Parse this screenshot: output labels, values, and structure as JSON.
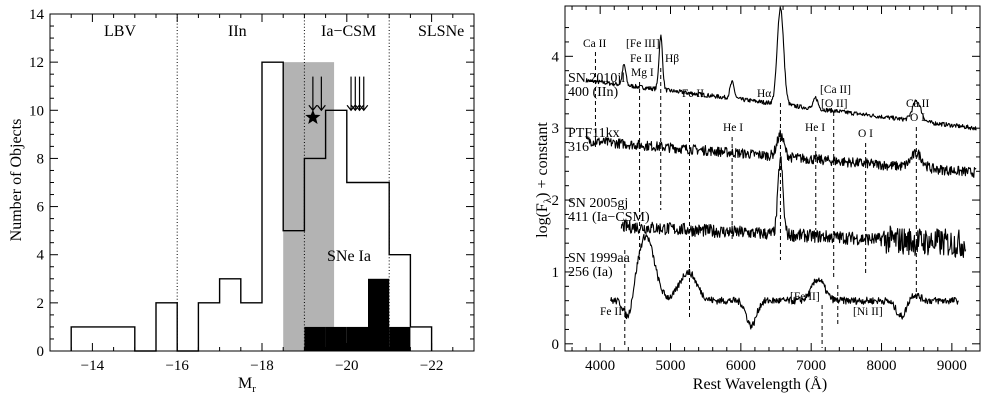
{
  "chart_data": [
    {
      "type": "histogram",
      "xlabel": "M",
      "xlabel_sub": "r",
      "ylabel": "Number of Objects",
      "xlim": [
        -13,
        -23
      ],
      "ylim": [
        0,
        14
      ],
      "x_ticks": [
        -14,
        -16,
        -18,
        -20,
        -22
      ],
      "x_tick_labels": [
        "−14",
        "−16",
        "−18",
        "−20",
        "−22"
      ],
      "y_ticks": [
        0,
        2,
        4,
        6,
        8,
        10,
        12,
        14
      ],
      "boundaries": [
        -16,
        -19,
        -21
      ],
      "regions": [
        "LBV",
        "IIn",
        "Ia−CSM",
        "SLSNe"
      ],
      "shaded_label": "SNe Ia",
      "shaded_range": [
        -18.5,
        -19.7
      ],
      "shaded_height": 12,
      "bin_edges": [
        -13.5,
        -14,
        -14.5,
        -15,
        -15.5,
        -16,
        -16.5,
        -17,
        -17.5,
        -18,
        -18.5,
        -19,
        -19.5,
        -20,
        -20.5,
        -21,
        -21.5,
        -22
      ],
      "all_counts": [
        1,
        1,
        1,
        0,
        2,
        0,
        2,
        3,
        2,
        12,
        5,
        8,
        10,
        7,
        7,
        4,
        1
      ],
      "ia_csm_counts": [
        0,
        0,
        0,
        0,
        0,
        0,
        0,
        0,
        0,
        0,
        0,
        1,
        1,
        1,
        3,
        1,
        0
      ],
      "star_x": -19.2,
      "star_y": 9.7,
      "arrow_groups": [
        [
          -19.2,
          -19.4
        ],
        [
          -20.1,
          -20.2,
          -20.3,
          -20.4
        ]
      ]
    },
    {
      "type": "line",
      "xlabel": "Rest Wavelength (Å)",
      "ylabel": "log(F",
      "ylabel_sub": "λ",
      "ylabel_tail": ") + constant",
      "xlim": [
        3500,
        9400
      ],
      "ylim": [
        -0.1,
        4.7
      ],
      "x_ticks": [
        4000,
        5000,
        6000,
        7000,
        8000,
        9000
      ],
      "y_ticks": [
        0,
        1,
        2,
        3,
        4
      ],
      "series": [
        {
          "name": "SN 2010jl",
          "name2": "400 (IIn)",
          "x_start": 3800,
          "x_end": 9350,
          "base": 3.4,
          "slope": -0.12,
          "noise": 0.03,
          "lines": [
            [
              4340,
              0.28,
              25
            ],
            [
              4861,
              0.75,
              25
            ],
            [
              5876,
              0.22,
              30
            ],
            [
              6563,
              1.35,
              45
            ],
            [
              7065,
              0.15,
              30
            ],
            [
              8500,
              0.28,
              60
            ]
          ]
        },
        {
          "name": "PTF11kx",
          "name2": "316",
          "x_start": 3800,
          "x_end": 9350,
          "base": 2.65,
          "slope": -0.08,
          "noise": 0.07,
          "lines": [
            [
              6563,
              0.3,
              50
            ],
            [
              8500,
              0.2,
              80
            ]
          ]
        },
        {
          "name": "SN 2005gj",
          "name2": "411 (Ia−CSM)",
          "x_start": 4300,
          "x_end": 9200,
          "base": 1.55,
          "slope": -0.05,
          "noise": 0.09,
          "lines": [
            [
              6563,
              1.05,
              35
            ]
          ]
        },
        {
          "name": "SN 1999aa",
          "name2": "256 (Ia)",
          "x_start": 4150,
          "x_end": 9100,
          "base": 0.6,
          "slope": 0,
          "noise": 0.05,
          "lines": [
            [
              4650,
              0.9,
              120
            ],
            [
              5250,
              0.4,
              120
            ],
            [
              7100,
              0.3,
              90
            ],
            [
              8400,
              0.15,
              100
            ],
            [
              4400,
              -0.3,
              60
            ],
            [
              6150,
              -0.35,
              70
            ],
            [
              8300,
              -0.3,
              80
            ]
          ]
        }
      ],
      "line_ids": [
        {
          "label": "Ca II",
          "x": 3933
        },
        {
          "label": "Fe II",
          "x": 4550
        },
        {
          "label": "Mg I",
          "x": 4570
        },
        {
          "label": "[Fe III]",
          "x": 4658
        },
        {
          "label": "Hβ",
          "x": 4861
        },
        {
          "label": "Fe II",
          "x": 5270
        },
        {
          "label": "He I",
          "x": 5876
        },
        {
          "label": "Hα",
          "x": 6563
        },
        {
          "label": "He I",
          "x": 7065
        },
        {
          "label": "[Ca II]",
          "x": 7300
        },
        {
          "label": "[O II]",
          "x": 7320
        },
        {
          "label": "O I",
          "x": 7774
        },
        {
          "label": "Ca II",
          "x": 8520
        },
        {
          "label": "O I",
          "x": 8446
        },
        {
          "label": "Fe II",
          "x": 4350
        },
        {
          "label": "[Fe II]",
          "x": 7155
        },
        {
          "label": "[Ni II]",
          "x": 7378
        }
      ]
    }
  ],
  "text": {
    "left_regions": [
      "LBV",
      "IIn",
      "Ia−CSM",
      "SLSNe"
    ],
    "shaded_label": "SNe Ia",
    "left_ylabel": "Number of Objects",
    "left_xlabel": "M",
    "left_xsub": "r",
    "right_xlabel": "Rest Wavelength (Å)",
    "r_ylabel_a": "log(F",
    "r_ylabel_sub": "λ",
    "r_ylabel_b": ") + constant",
    "s1a": "SN 2010jl",
    "s1b": "400 (IIn)",
    "s2a": "PTF11kx",
    "s2b": "316",
    "s3a": "SN 2005gj",
    "s3b": "411 (Ia−CSM)",
    "s4a": "SN 1999aa",
    "s4b": "256 (Ia)",
    "id_ca2a": "Ca II",
    "id_fe3": "[Fe III]",
    "id_fe2a": "Fe II",
    "id_mg1": "Mg I",
    "id_hb": "Hβ",
    "id_fe2b": "Fe II",
    "id_he1a": "He I",
    "id_ha": "Hα",
    "id_he1b": "He I",
    "id_ca2b": "[Ca II]",
    "id_o2": "[O II]",
    "id_o1a": "O I",
    "id_ca2c": "Ca II",
    "id_o1b": "O I",
    "id_fe2c": "Fe II",
    "id_fe2d": "[Fe II]",
    "id_ni2": "[Ni II]"
  }
}
